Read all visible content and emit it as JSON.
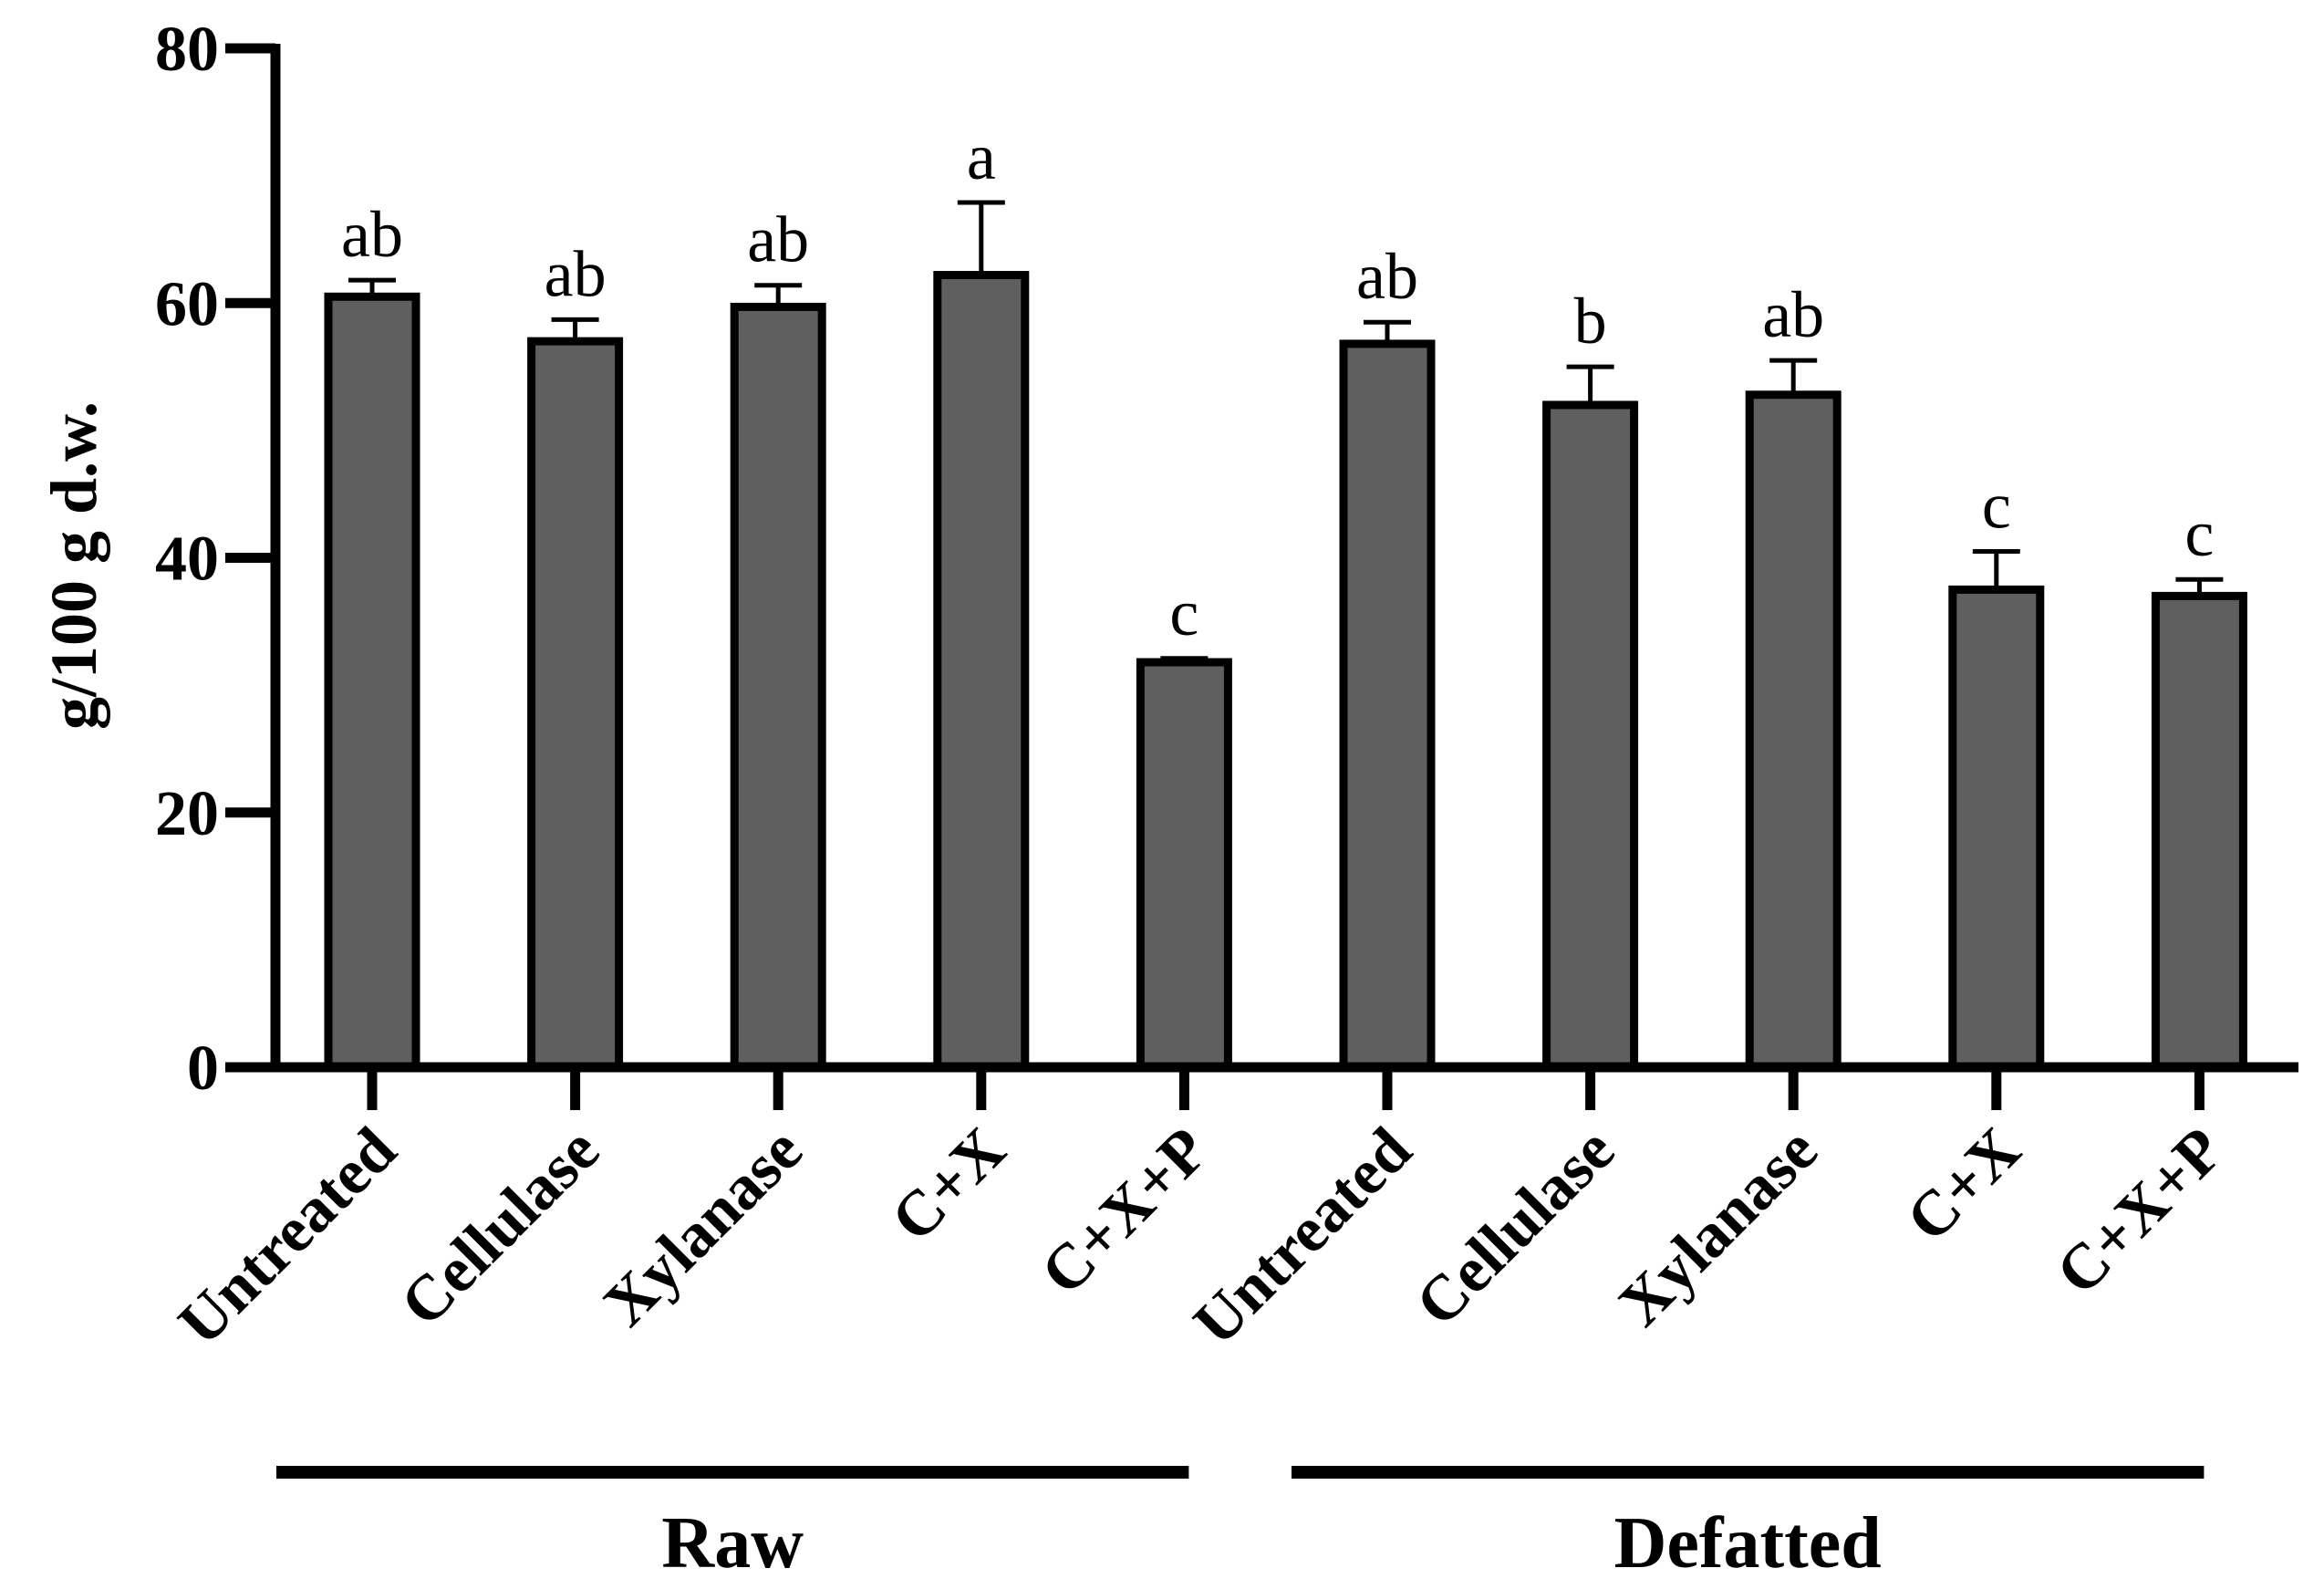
{
  "chart_data": {
    "type": "bar",
    "title": "",
    "xlabel": "",
    "ylabel": "g/100 g d.w.",
    "ylim": [
      0,
      80
    ],
    "yticks": [
      0,
      20,
      40,
      60,
      80
    ],
    "grid": false,
    "bar_color": "#5f5f5f",
    "categories": [
      "Untreated",
      "Cellulase",
      "Xylanase",
      "C+X",
      "C+X+P",
      "Untreated",
      "Cellulase",
      "Xylanase",
      "C+X",
      "C+X+P"
    ],
    "values": [
      60.5,
      57.0,
      59.7,
      62.2,
      31.8,
      56.8,
      52.0,
      52.8,
      37.5,
      37.0
    ],
    "errors": [
      1.3,
      1.7,
      1.7,
      5.7,
      0.3,
      1.7,
      3.0,
      2.7,
      3.0,
      1.3
    ],
    "significance": [
      "ab",
      "ab",
      "ab",
      "a",
      "c",
      "ab",
      "b",
      "ab",
      "c",
      "c"
    ],
    "groups": [
      {
        "name": "Raw",
        "start": 0,
        "end": 4
      },
      {
        "name": "Defatted",
        "start": 5,
        "end": 9
      }
    ]
  }
}
